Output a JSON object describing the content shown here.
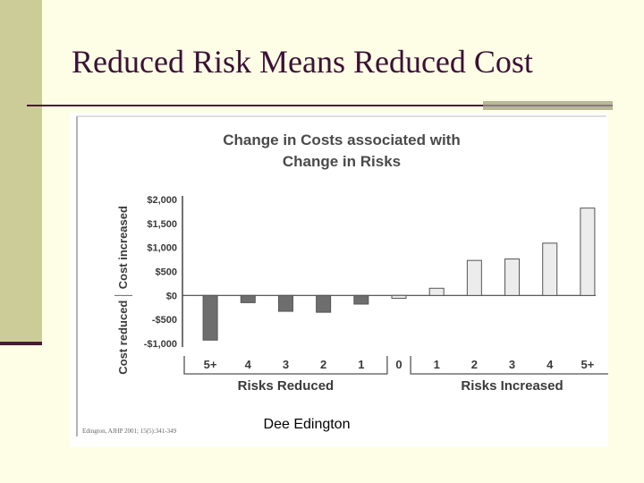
{
  "slide": {
    "title": "Reduced Risk Means Reduced Cost",
    "caption": "Dee Edington"
  },
  "colors": {
    "background": "#fefee6",
    "accent": "#cccc99",
    "title_text": "#3b1136",
    "bar_dark": "#6e6e6e",
    "bar_light": "#ececec"
  },
  "chart_data": {
    "type": "bar",
    "title": [
      "Change in Costs associated with",
      "Change in Risks"
    ],
    "ylabel_positive": "Cost increased",
    "ylabel_negative": "Cost reduced",
    "ylim": [
      -1000,
      2000
    ],
    "yticks": [
      {
        "value": 2000,
        "label": "$2,000"
      },
      {
        "value": 1500,
        "label": "$1,500"
      },
      {
        "value": 1000,
        "label": "$1,000"
      },
      {
        "value": 500,
        "label": "$500"
      },
      {
        "value": 0,
        "label": "$0"
      },
      {
        "value": -500,
        "label": "-$500"
      },
      {
        "value": -1000,
        "label": "-$1,000"
      }
    ],
    "categories": [
      "5+",
      "4",
      "3",
      "2",
      "1",
      "0",
      "1",
      "2",
      "3",
      "4",
      "5+"
    ],
    "values": [
      -930,
      -150,
      -330,
      -350,
      -180,
      -60,
      150,
      730,
      760,
      1090,
      1820
    ],
    "groups": [
      {
        "label": "Risks Reduced",
        "indices": [
          0,
          1,
          2,
          3,
          4
        ]
      },
      {
        "label": "Risks Increased",
        "indices": [
          6,
          7,
          8,
          9,
          10
        ]
      }
    ],
    "source": "Edington, AJHP 2001; 15(5):341-349",
    "grid": false,
    "legend": "none"
  }
}
